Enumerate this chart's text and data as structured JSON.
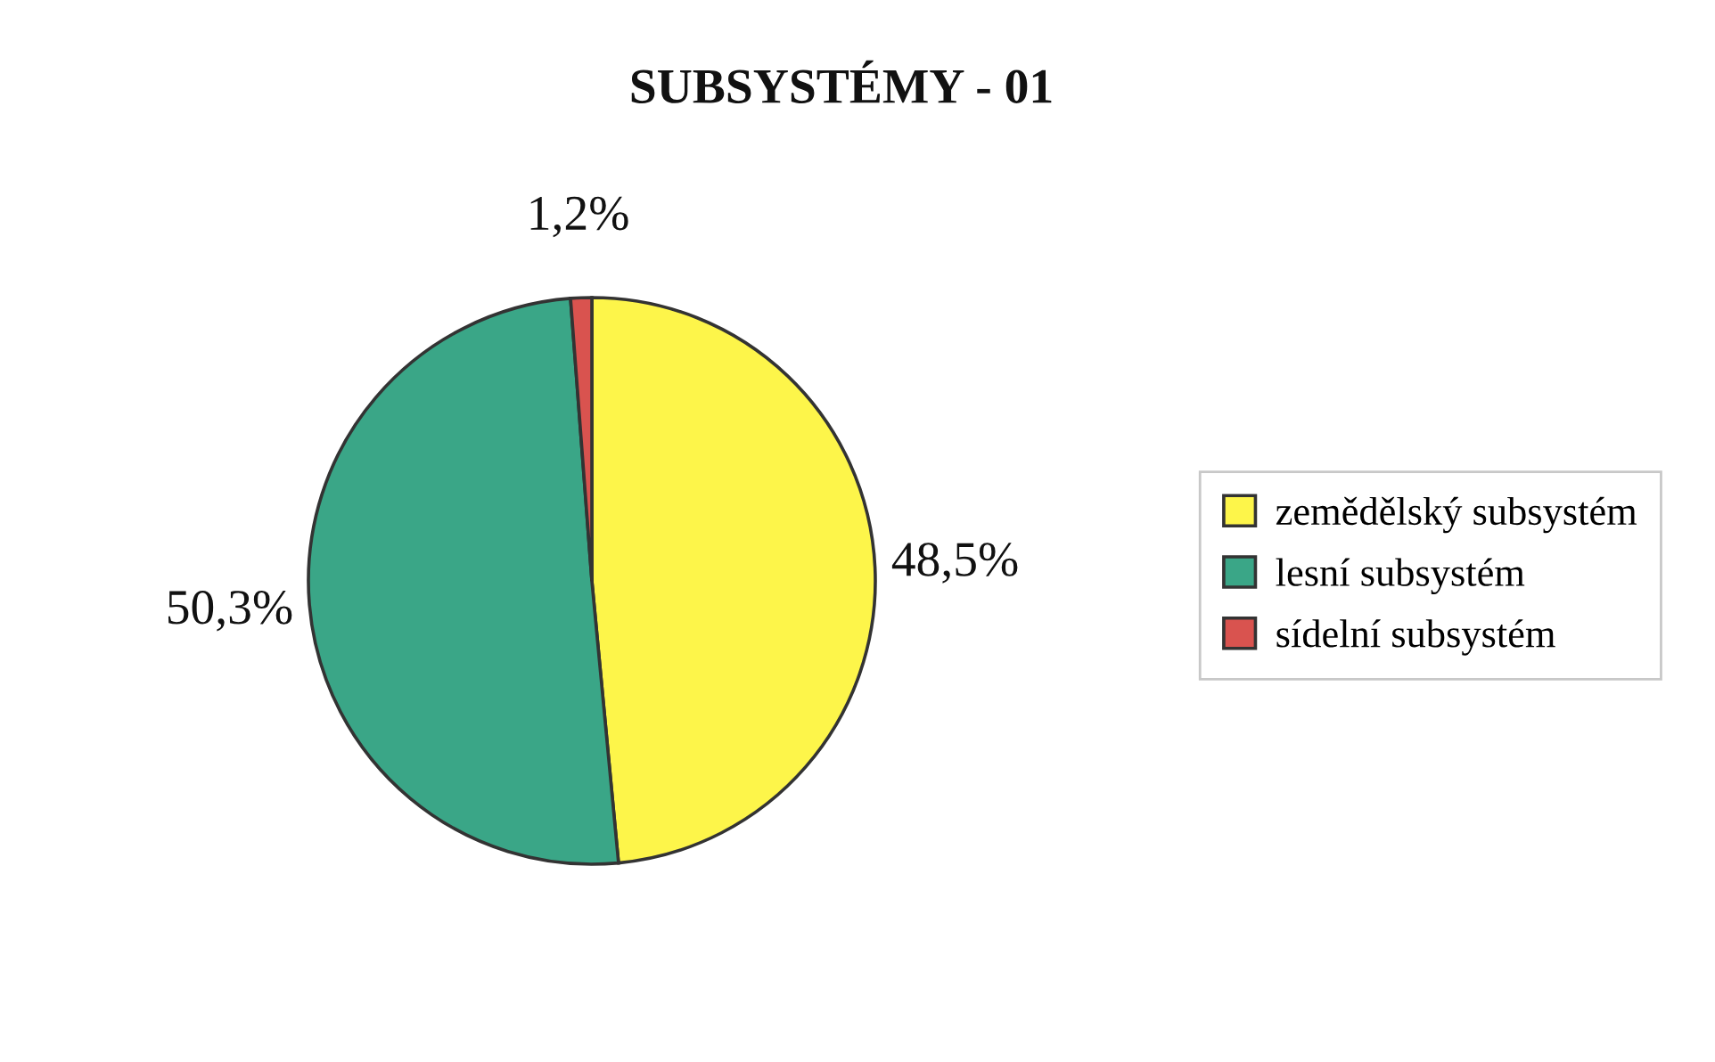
{
  "chart_data": {
    "type": "pie",
    "title": "SUBSYSTÉMY - 01",
    "categories": [
      "zemědělský subsystém",
      "lesní subsystém",
      "sídelní subsystém"
    ],
    "values": [
      48.5,
      50.3,
      1.2
    ],
    "value_labels": [
      "48,5%",
      "50,3%",
      "1,2%"
    ],
    "colors": [
      "#fdf54a",
      "#3aa687",
      "#d9534f"
    ],
    "legend": "right"
  }
}
